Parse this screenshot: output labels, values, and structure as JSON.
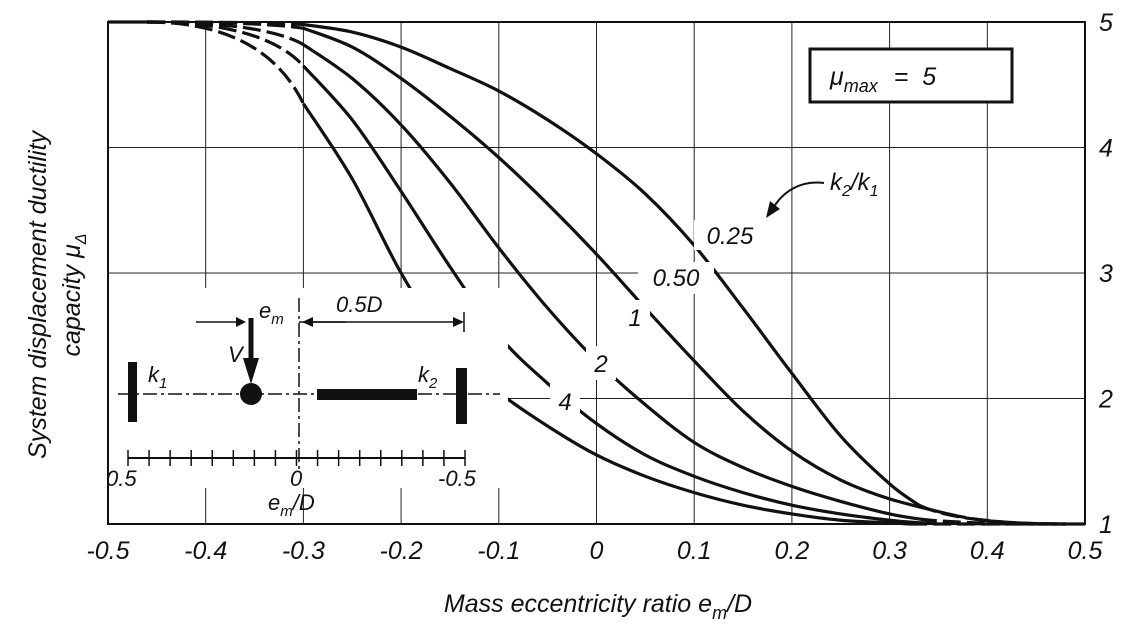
{
  "chart_data": {
    "type": "line",
    "title": "",
    "xlabel": "Mass eccentricity ratio e_m/D",
    "xlabel_main": "Mass eccentricity ratio e",
    "xlabel_sub": "m",
    "xlabel_tail": "/D",
    "ylabel_line1": "System displacement ductility",
    "ylabel_line2_main": "capacity μ",
    "ylabel_line2_sub": "Δ",
    "xlim": [
      -0.5,
      0.5
    ],
    "ylim": [
      1,
      5
    ],
    "y_axis_side": "right",
    "grid": true,
    "x_ticks": [
      "-0.5",
      "-0.4",
      "-0.3",
      "-0.2",
      "-0.1",
      "0",
      "0.1",
      "0.2",
      "0.3",
      "0.4",
      "0.5"
    ],
    "y_ticks": [
      "1",
      "2",
      "3",
      "4",
      "5"
    ],
    "mu_max_label": {
      "main": "μ",
      "sub": "max",
      "rest": "=  5"
    },
    "series_label_title": {
      "main": "k",
      "sub1": "2",
      "slash": "/k",
      "sub2": "1"
    },
    "series": [
      {
        "name": "0.25",
        "x": [
          -0.3,
          -0.25,
          -0.2,
          -0.15,
          -0.1,
          -0.05,
          0.0,
          0.05,
          0.1,
          0.15,
          0.2,
          0.25,
          0.3,
          0.33
        ],
        "values": [
          4.98,
          4.92,
          4.8,
          4.63,
          4.45,
          4.22,
          3.95,
          3.63,
          3.22,
          2.72,
          2.2,
          1.7,
          1.32,
          1.15
        ]
      },
      {
        "name": "0.50",
        "x": [
          -0.3,
          -0.25,
          -0.2,
          -0.15,
          -0.1,
          -0.05,
          0.0,
          0.05,
          0.1,
          0.15,
          0.2,
          0.25,
          0.3,
          0.36
        ],
        "values": [
          4.95,
          4.8,
          4.55,
          4.25,
          3.92,
          3.55,
          3.15,
          2.72,
          2.3,
          1.9,
          1.58,
          1.35,
          1.2,
          1.08
        ]
      },
      {
        "name": "1",
        "x": [
          -0.3,
          -0.25,
          -0.2,
          -0.15,
          -0.1,
          -0.05,
          0.0,
          0.05,
          0.1,
          0.15,
          0.2,
          0.25,
          0.3,
          0.33
        ],
        "values": [
          4.82,
          4.55,
          4.18,
          3.72,
          3.2,
          2.72,
          2.3,
          1.95,
          1.65,
          1.45,
          1.3,
          1.18,
          1.08,
          1.04
        ]
      },
      {
        "name": "2",
        "x": [
          -0.3,
          -0.25,
          -0.2,
          -0.15,
          -0.1,
          -0.05,
          0.0,
          0.05,
          0.1,
          0.15,
          0.2,
          0.25,
          0.3,
          0.33
        ],
        "values": [
          4.65,
          4.22,
          3.65,
          3.05,
          2.5,
          2.12,
          1.8,
          1.55,
          1.38,
          1.25,
          1.15,
          1.08,
          1.03,
          1.01
        ]
      },
      {
        "name": "4",
        "x": [
          -0.3,
          -0.25,
          -0.2,
          -0.15,
          -0.1,
          -0.05,
          0.0,
          0.05,
          0.1,
          0.15,
          0.2,
          0.25,
          0.3,
          0.32
        ],
        "values": [
          4.35,
          3.75,
          3.0,
          2.4,
          2.05,
          1.78,
          1.55,
          1.38,
          1.25,
          1.15,
          1.08,
          1.03,
          1.01,
          1.0
        ]
      }
    ],
    "curve_label_positions": [
      "above-right",
      "above-right",
      "on-curve",
      "on-curve",
      "on-curve"
    ],
    "inset": {
      "k1_main": "k",
      "k1_sub": "1",
      "k2_main": "k",
      "k2_sub": "2",
      "em_main": "e",
      "em_sub": "m",
      "V": "V",
      "half_D": "0.5D",
      "tick_left": "0.5",
      "tick_mid": "0",
      "tick_right": "-0.5",
      "axis_main": "e",
      "axis_sub": "m",
      "axis_tail": "/D"
    }
  }
}
